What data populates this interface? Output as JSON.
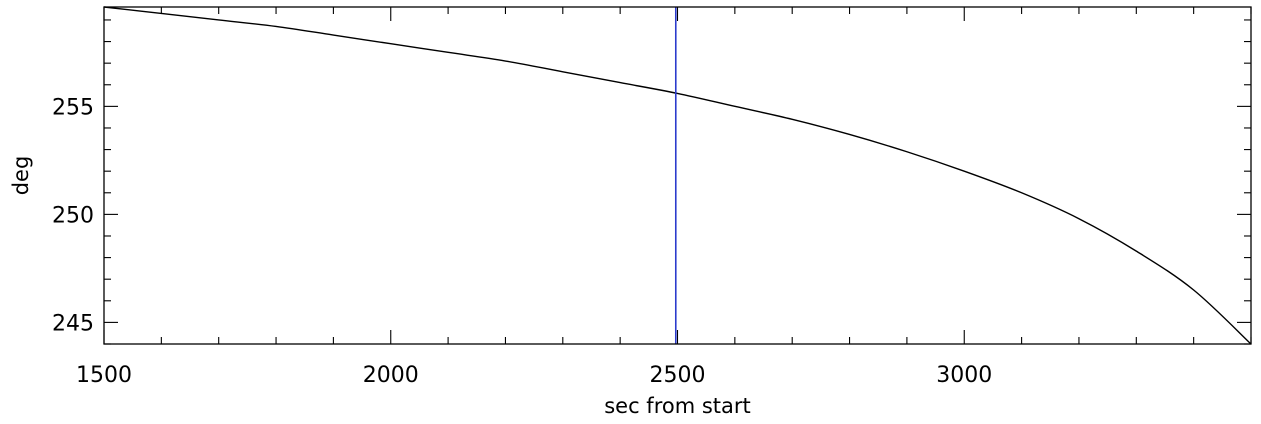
{
  "chart_data": {
    "type": "line",
    "title": "",
    "xlabel": "sec from start",
    "ylabel": "deg",
    "xlim": [
      1500,
      3500
    ],
    "ylim": [
      244,
      259.6
    ],
    "grid": false,
    "x_ticks": [
      {
        "value": 1500,
        "label": "1500"
      },
      {
        "value": 2000,
        "label": "2000"
      },
      {
        "value": 2500,
        "label": "2500"
      },
      {
        "value": 3000,
        "label": "3000"
      }
    ],
    "x_minor_step": 100,
    "y_ticks": [
      {
        "value": 245,
        "label": "245"
      },
      {
        "value": 250,
        "label": "250"
      },
      {
        "value": 255,
        "label": "255"
      }
    ],
    "y_minor_step": 1,
    "series": [
      {
        "color": "#000000",
        "x": [
          1500,
          1600,
          1700,
          1800,
          1900,
          2000,
          2100,
          2200,
          2300,
          2400,
          2500,
          2600,
          2700,
          2800,
          2900,
          3000,
          3100,
          3200,
          3300,
          3400,
          3500
        ],
        "y": [
          259.6,
          259.3,
          259.0,
          258.7,
          258.3,
          257.9,
          257.5,
          257.1,
          256.6,
          256.1,
          255.6,
          255.0,
          254.4,
          253.7,
          252.9,
          252.0,
          251.0,
          249.8,
          248.3,
          246.5,
          244.0
        ]
      }
    ],
    "markers": [
      {
        "type": "vertical-line",
        "x": 2497,
        "color": "#2b3bcc"
      }
    ]
  }
}
